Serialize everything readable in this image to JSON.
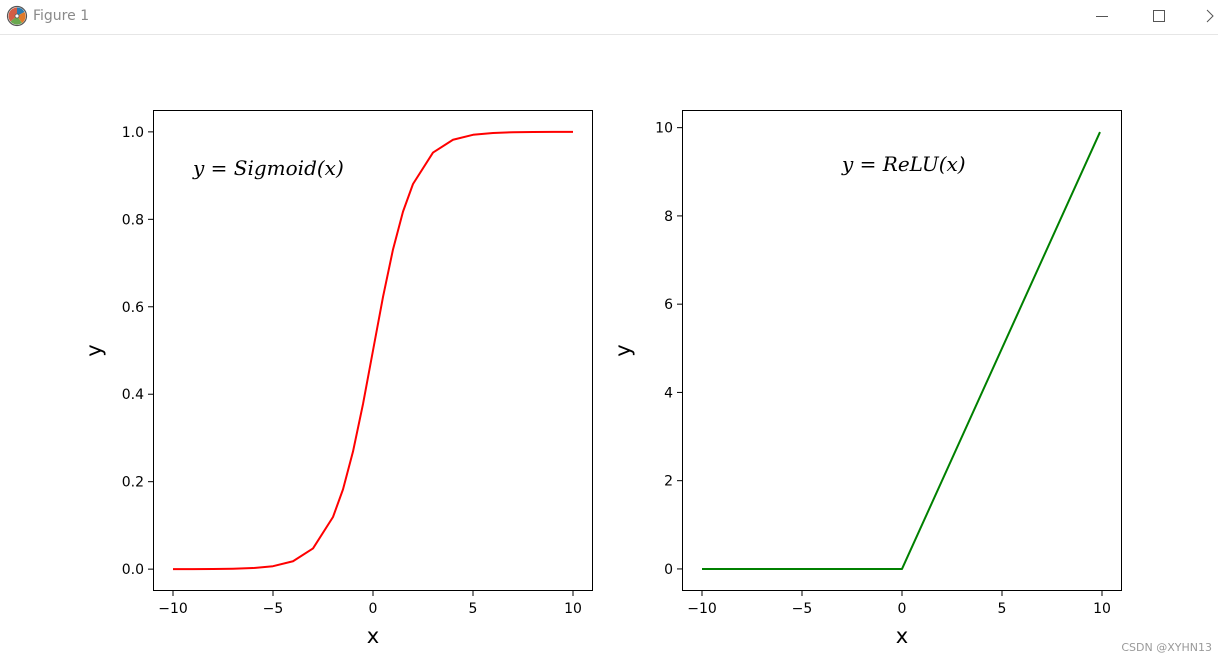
{
  "window": {
    "title": "Figure 1",
    "icons": {
      "app": "matplotlib-figure-icon",
      "minimize": "minimize-icon",
      "maximize": "maximize-icon",
      "more": "chevron-right-icon"
    }
  },
  "watermark": "CSDN @XYHN13",
  "chart_data": [
    {
      "type": "line",
      "function": "sigmoid",
      "title": "",
      "annotation": "y = Sigmoid(x)",
      "xlabel": "x",
      "ylabel": "y",
      "xlim": [
        -11,
        11
      ],
      "ylim": [
        -0.05,
        1.05
      ],
      "xticks": [
        -10,
        -5,
        0,
        5,
        10
      ],
      "xtick_labels": [
        "−10",
        "−5",
        "0",
        "5",
        "10"
      ],
      "yticks": [
        0.0,
        0.2,
        0.4,
        0.6,
        0.8,
        1.0
      ],
      "ytick_labels": [
        "0.0",
        "0.2",
        "0.4",
        "0.6",
        "0.8",
        "1.0"
      ],
      "grid": false,
      "series": [
        {
          "color": "#ff0000",
          "x": [
            -10,
            -9,
            -8,
            -7,
            -6,
            -5,
            -4,
            -3,
            -2,
            -1.5,
            -1,
            -0.5,
            0,
            0.5,
            1,
            1.5,
            2,
            3,
            4,
            5,
            6,
            7,
            8,
            9,
            10
          ],
          "y": [
            4.54e-05,
            0.000123,
            0.000335,
            0.000911,
            0.00247,
            0.00669,
            0.018,
            0.0474,
            0.1192,
            0.1824,
            0.2689,
            0.3775,
            0.5,
            0.6225,
            0.7311,
            0.8176,
            0.8808,
            0.9526,
            0.982,
            0.9933,
            0.9975,
            0.9991,
            0.9997,
            0.9999,
            1.0
          ]
        }
      ]
    },
    {
      "type": "line",
      "function": "relu",
      "title": "",
      "annotation": "y = ReLU(x)",
      "xlabel": "x",
      "ylabel": "y",
      "xlim": [
        -11,
        11
      ],
      "ylim": [
        -0.5,
        10.4
      ],
      "xticks": [
        -10,
        -5,
        0,
        5,
        10
      ],
      "xtick_labels": [
        "−10",
        "−5",
        "0",
        "5",
        "10"
      ],
      "yticks": [
        0,
        2,
        4,
        6,
        8,
        10
      ],
      "ytick_labels": [
        "0",
        "2",
        "4",
        "6",
        "8",
        "10"
      ],
      "grid": false,
      "series": [
        {
          "color": "#008000",
          "x": [
            -10,
            0,
            9.9
          ],
          "y": [
            0,
            0,
            9.9
          ]
        }
      ]
    }
  ]
}
